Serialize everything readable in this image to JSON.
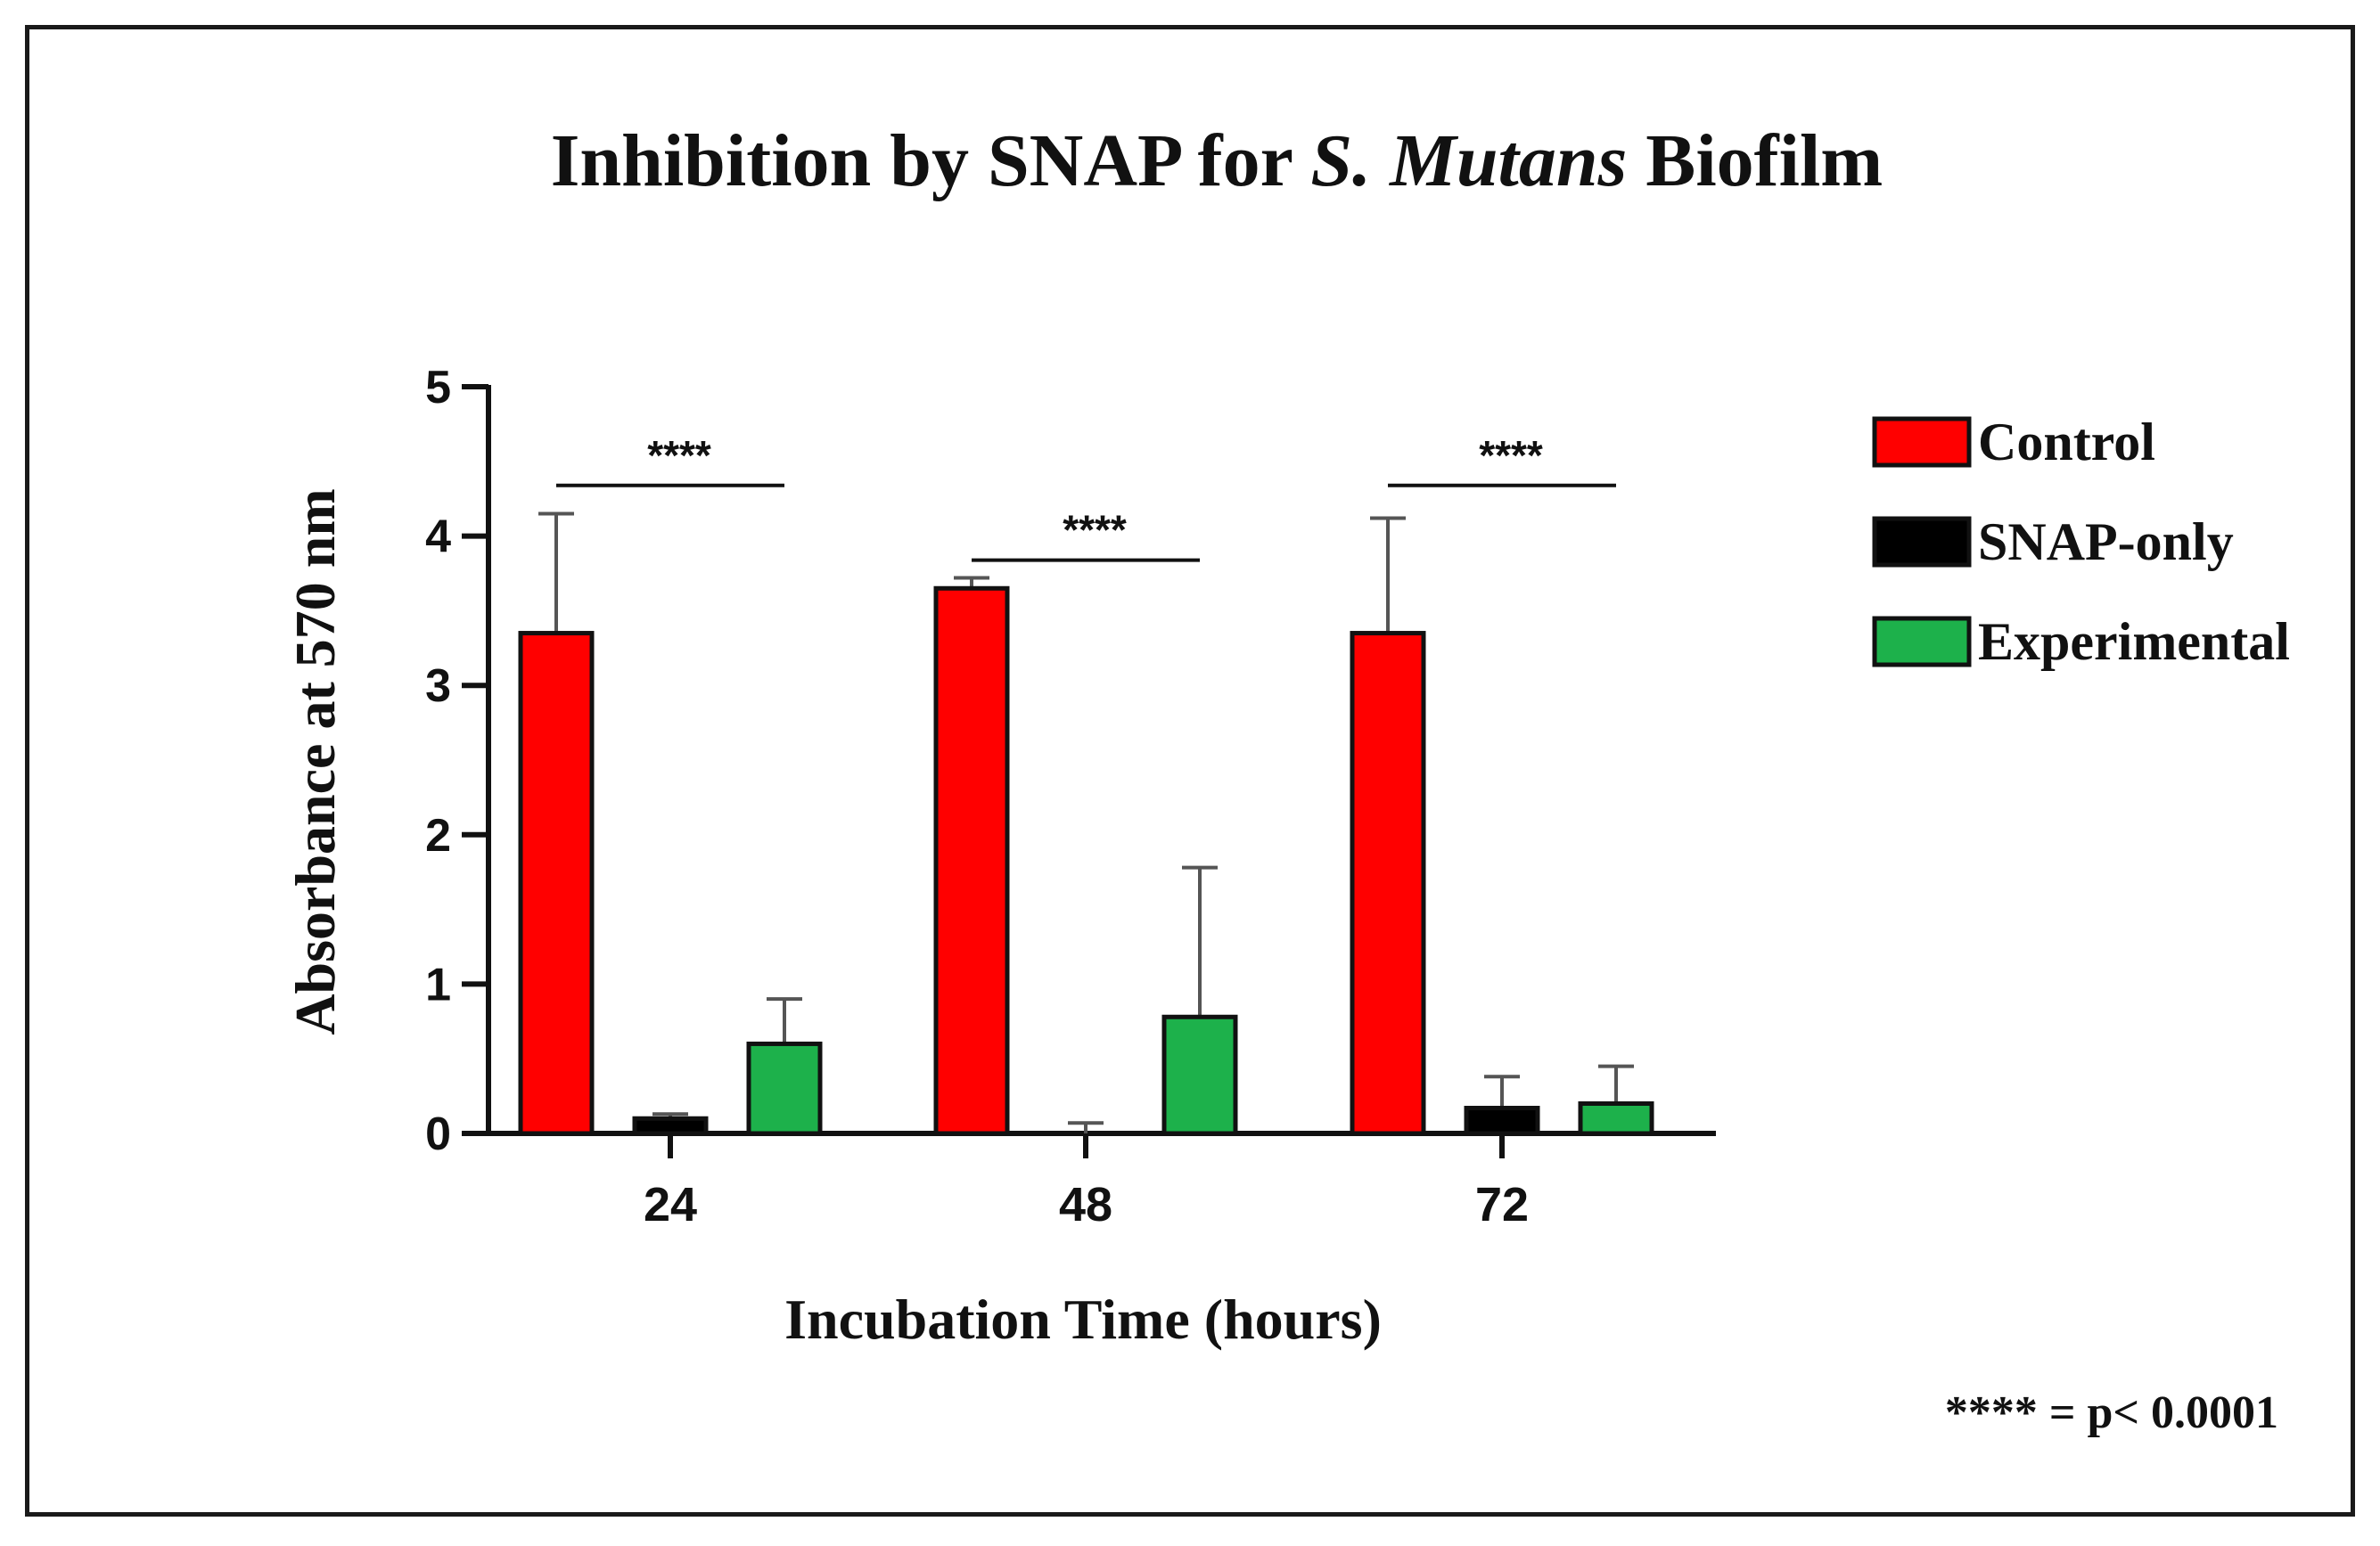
{
  "chart_data": {
    "type": "bar",
    "title": {
      "prefix": "Inhibition by SNAP for ",
      "italic": "S. Mutans",
      "suffix": " Biofilm"
    },
    "xlabel": "Incubation Time (hours)",
    "ylabel": "Absorbance at 570 nm",
    "ylim": [
      0,
      5
    ],
    "yticks": [
      "0",
      "1",
      "2",
      "3",
      "4",
      "5"
    ],
    "categories": [
      "24",
      "48",
      "72"
    ],
    "series": [
      {
        "name": "Control",
        "color": "#ff0000",
        "values": [
          3.35,
          3.65,
          3.35
        ],
        "errors": [
          0.8,
          0.07,
          0.77
        ]
      },
      {
        "name": "SNAP-only",
        "color": "#000000",
        "values": [
          0.1,
          0.0,
          0.17
        ],
        "errors": [
          0.03,
          0.07,
          0.21
        ]
      },
      {
        "name": "Experimental",
        "color": "#1db14b",
        "values": [
          0.6,
          0.78,
          0.2
        ],
        "errors": [
          0.3,
          1.0,
          0.25
        ]
      }
    ],
    "significance": [
      {
        "category": "24",
        "label": "****",
        "y": 4.5
      },
      {
        "category": "48",
        "label": "****",
        "y": 4.0
      },
      {
        "category": "72",
        "label": "****",
        "y": 4.5
      }
    ],
    "footnote": "**** = p< 0.0001",
    "legend": "right"
  }
}
